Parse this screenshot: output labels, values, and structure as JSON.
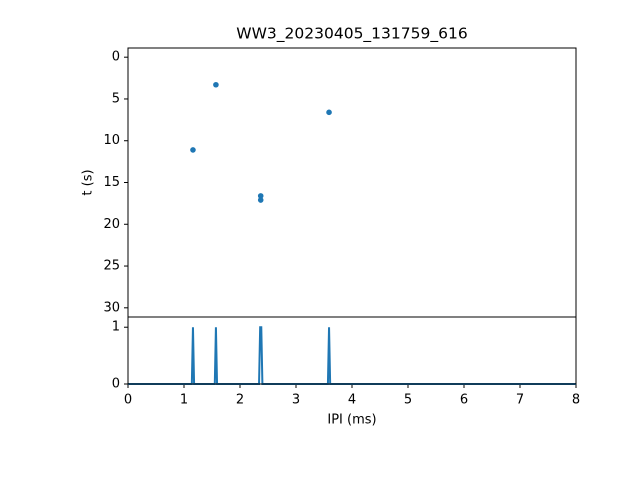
{
  "chart_data": [
    {
      "type": "scatter",
      "title": "WW3_20230405_131759_616",
      "y_label": "t (s)",
      "x": [
        1.16,
        1.57,
        2.37,
        2.37,
        3.59
      ],
      "values": [
        11.1,
        3.3,
        16.6,
        17.1,
        6.6
      ],
      "color": "#1f77b4",
      "xlim": [
        0,
        8
      ],
      "ylim": [
        31.1,
        -1.1
      ],
      "yticks": [
        0,
        5,
        10,
        15,
        20,
        25,
        30
      ]
    },
    {
      "type": "line",
      "x_label": "IPI (ms)",
      "x": [
        0,
        1.14,
        1.16,
        1.18,
        1.55,
        1.57,
        1.59,
        2.34,
        2.36,
        2.38,
        2.4,
        3.57,
        3.59,
        3.61,
        8
      ],
      "values": [
        0,
        0,
        1,
        0,
        0,
        1,
        0,
        0,
        1,
        1,
        0,
        0,
        1,
        0,
        0
      ],
      "color": "#1f77b4",
      "xlim": [
        0,
        8
      ],
      "ylim": [
        0,
        1.18
      ],
      "xticks": [
        0,
        1,
        2,
        3,
        4,
        5,
        6,
        7,
        8
      ],
      "yticks": [
        0,
        1
      ]
    }
  ]
}
